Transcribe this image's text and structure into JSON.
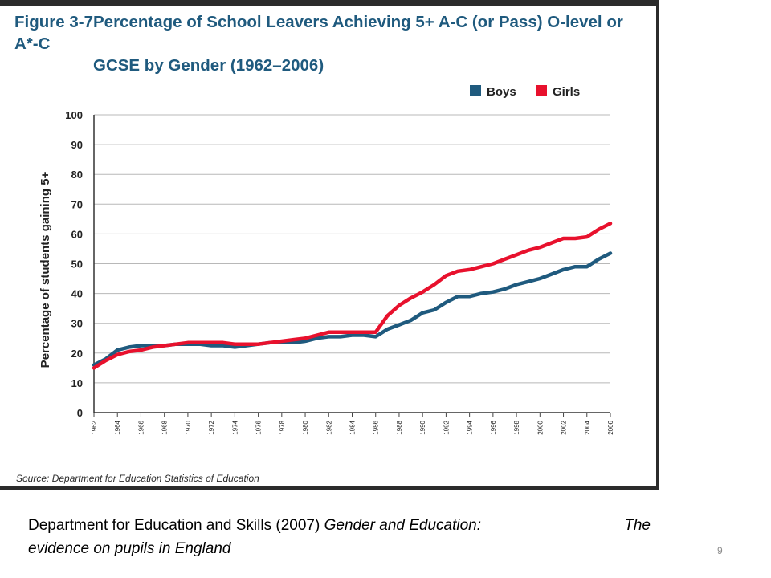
{
  "figure": {
    "number": "Figure 3-7",
    "title_line1": "Percentage of School Leavers Achieving 5+ A-C (or Pass) O-level or A*-C",
    "title_line2": "GCSE by Gender (1962–2006)",
    "source": "Source: Department for Education Statistics of Education"
  },
  "citation": {
    "author_year": "Department for Education and Skills (2007) ",
    "title_part1": "Gender and Education:",
    "title_part2": "The",
    "title_part3": "evidence on pupils in England"
  },
  "page_number": "9",
  "colors": {
    "boys": "#1f5a7e",
    "girls": "#e8112d",
    "grid": "#b8b8b8",
    "title": "#1f5a7e"
  },
  "chart_data": {
    "type": "line",
    "title": "Percentage of School Leavers Achieving 5+ A-C (or Pass) O-level or A*-C GCSE by Gender (1962–2006)",
    "xlabel": "",
    "ylabel": "Percentage of students gaining 5+",
    "ylim": [
      0,
      100
    ],
    "xlim": [
      1962,
      2006
    ],
    "grid": true,
    "legend_position": "top-right",
    "y_ticks": [
      "0",
      "10",
      "20",
      "30",
      "40",
      "50",
      "60",
      "70",
      "80",
      "90",
      "100"
    ],
    "x_ticks": [
      "1962",
      "1964",
      "1966",
      "1968",
      "1970",
      "1972",
      "1974",
      "1976",
      "1978",
      "1980",
      "1982",
      "1984",
      "1986",
      "1988",
      "1990",
      "1992",
      "1994",
      "1996",
      "1998",
      "2000",
      "2002",
      "2004",
      "2006"
    ],
    "x": [
      1962,
      1963,
      1964,
      1965,
      1966,
      1967,
      1968,
      1969,
      1970,
      1971,
      1972,
      1973,
      1974,
      1975,
      1976,
      1977,
      1978,
      1979,
      1980,
      1981,
      1982,
      1983,
      1984,
      1985,
      1986,
      1987,
      1988,
      1989,
      1990,
      1991,
      1992,
      1993,
      1994,
      1995,
      1996,
      1997,
      1998,
      1999,
      2000,
      2001,
      2002,
      2003,
      2004,
      2005,
      2006
    ],
    "series": [
      {
        "name": "Boys",
        "color": "#1f5a7e",
        "values": [
          16,
          18,
          21,
          22,
          22.5,
          22.5,
          22.5,
          23,
          23,
          23,
          22.5,
          22.5,
          22,
          22.5,
          23,
          23.5,
          23.5,
          23.5,
          24,
          25,
          25.5,
          25.5,
          26,
          26,
          25.5,
          28,
          29.5,
          31,
          33.5,
          34.5,
          37,
          39,
          39,
          40,
          40.5,
          41.5,
          43,
          44,
          45,
          46.5,
          48,
          49,
          49,
          51.5,
          53.5
        ]
      },
      {
        "name": "Girls",
        "color": "#e8112d",
        "values": [
          15,
          17.5,
          19.5,
          20.5,
          21,
          22,
          22.5,
          23,
          23.5,
          23.5,
          23.5,
          23.5,
          23,
          23,
          23,
          23.5,
          24,
          24.5,
          25,
          26,
          27,
          27,
          27,
          27,
          27,
          32.5,
          36,
          38.5,
          40.5,
          43,
          46,
          47.5,
          48,
          49,
          50,
          51.5,
          53,
          54.5,
          55.5,
          57,
          58.5,
          58.5,
          59,
          61.5,
          63.5
        ]
      }
    ]
  }
}
